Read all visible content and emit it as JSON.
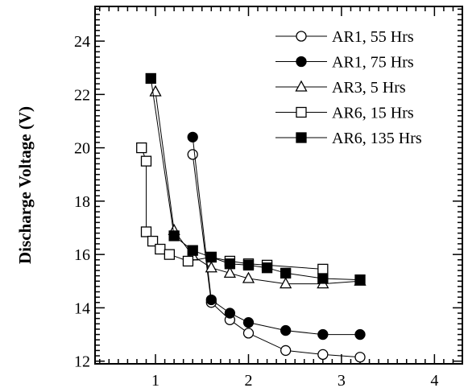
{
  "chart_data": {
    "type": "line",
    "ylabel": "Discharge Voltage (V)",
    "xlabel": "",
    "xlim": [
      0.35,
      4.3
    ],
    "ylim": [
      11.9,
      25.3
    ],
    "x_ticks": [
      1,
      2,
      3,
      4
    ],
    "y_ticks": [
      12,
      14,
      16,
      18,
      20,
      22,
      24
    ],
    "x_minor_step": 0.1,
    "y_minor_step": 0.2,
    "grid": false,
    "legend_position": "top-right",
    "series": [
      {
        "name": "AR1, 55 Hrs",
        "marker": "circle",
        "fill": "open",
        "points": [
          [
            1.4,
            19.75
          ],
          [
            1.6,
            14.2
          ],
          [
            1.8,
            13.55
          ],
          [
            2.0,
            13.05
          ],
          [
            2.4,
            12.4
          ],
          [
            2.8,
            12.25
          ],
          [
            3.2,
            12.15
          ]
        ]
      },
      {
        "name": "AR1, 75 Hrs",
        "marker": "circle",
        "fill": "filled",
        "points": [
          [
            1.4,
            20.4
          ],
          [
            1.6,
            14.3
          ],
          [
            1.8,
            13.8
          ],
          [
            2.0,
            13.45
          ],
          [
            2.4,
            13.15
          ],
          [
            2.8,
            13.0
          ],
          [
            3.2,
            13.0
          ]
        ]
      },
      {
        "name": "AR3, 5 Hrs",
        "marker": "triangle",
        "fill": "open",
        "points": [
          [
            1.0,
            22.1
          ],
          [
            1.2,
            16.9
          ],
          [
            1.4,
            15.95
          ],
          [
            1.6,
            15.5
          ],
          [
            1.8,
            15.3
          ],
          [
            2.0,
            15.1
          ],
          [
            2.4,
            14.9
          ],
          [
            2.8,
            14.9
          ],
          [
            3.2,
            15.0
          ]
        ]
      },
      {
        "name": "AR6, 15 Hrs",
        "marker": "square",
        "fill": "open",
        "points": [
          [
            0.85,
            20.0
          ],
          [
            0.9,
            19.5
          ],
          [
            0.9,
            16.85
          ],
          [
            0.97,
            16.5
          ],
          [
            1.05,
            16.2
          ],
          [
            1.15,
            16.0
          ],
          [
            1.35,
            15.75
          ],
          [
            1.6,
            15.9
          ],
          [
            1.8,
            15.75
          ],
          [
            2.0,
            15.65
          ],
          [
            2.2,
            15.6
          ],
          [
            2.8,
            15.45
          ]
        ]
      },
      {
        "name": "AR6, 135 Hrs",
        "marker": "square",
        "fill": "filled",
        "points": [
          [
            0.95,
            22.6
          ],
          [
            1.2,
            16.7
          ],
          [
            1.4,
            16.15
          ],
          [
            1.6,
            15.9
          ],
          [
            1.8,
            15.65
          ],
          [
            2.0,
            15.6
          ],
          [
            2.2,
            15.5
          ],
          [
            2.4,
            15.3
          ],
          [
            2.8,
            15.1
          ],
          [
            3.2,
            15.05
          ]
        ]
      }
    ]
  }
}
